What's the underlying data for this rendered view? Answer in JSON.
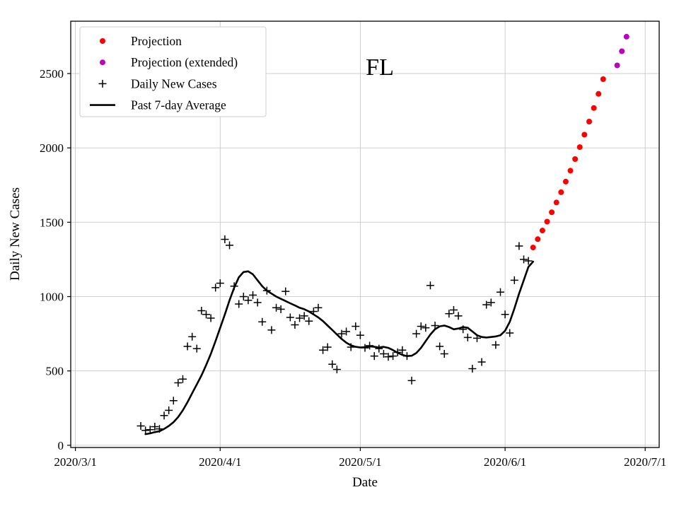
{
  "chart_data": {
    "type": "line",
    "title": "FL",
    "xlabel": "Date",
    "ylabel": "Daily New Cases",
    "grid": true,
    "legend_position": "upper left",
    "x_axis": {
      "unit": "days since 2020-03-01",
      "tick_labels": [
        "2020/3/1",
        "2020/4/1",
        "2020/5/1",
        "2020/6/1",
        "2020/7/1"
      ],
      "tick_days": [
        0,
        31,
        61,
        92,
        122
      ],
      "range_days": [
        -1,
        125
      ]
    },
    "y_axis": {
      "ticks": [
        0,
        500,
        1000,
        1500,
        2000,
        2500
      ],
      "range": [
        -15,
        2852
      ]
    },
    "series": [
      {
        "id": "daily-new-cases",
        "name": "Daily New Cases",
        "type": "scatter",
        "marker": "plus",
        "color": "#000000",
        "points": [
          [
            14,
            130
          ],
          [
            15,
            100
          ],
          [
            16,
            105
          ],
          [
            17,
            125
          ],
          [
            18,
            110
          ],
          [
            19,
            200
          ],
          [
            20,
            235
          ],
          [
            21,
            300
          ],
          [
            22,
            420
          ],
          [
            23,
            445
          ],
          [
            24,
            665
          ],
          [
            25,
            730
          ],
          [
            26,
            650
          ],
          [
            27,
            905
          ],
          [
            28,
            880
          ],
          [
            29,
            855
          ],
          [
            30,
            1060
          ],
          [
            31,
            1090
          ],
          [
            32,
            1385
          ],
          [
            33,
            1345
          ],
          [
            34,
            1070
          ],
          [
            35,
            950
          ],
          [
            36,
            1000
          ],
          [
            37,
            975
          ],
          [
            38,
            1010
          ],
          [
            39,
            960
          ],
          [
            40,
            830
          ],
          [
            41,
            1040
          ],
          [
            42,
            775
          ],
          [
            43,
            925
          ],
          [
            44,
            915
          ],
          [
            45,
            1035
          ],
          [
            46,
            860
          ],
          [
            47,
            810
          ],
          [
            48,
            855
          ],
          [
            49,
            870
          ],
          [
            50,
            835
          ],
          [
            51,
            900
          ],
          [
            52,
            925
          ],
          [
            53,
            640
          ],
          [
            54,
            660
          ],
          [
            55,
            545
          ],
          [
            56,
            510
          ],
          [
            57,
            750
          ],
          [
            58,
            765
          ],
          [
            59,
            660
          ],
          [
            60,
            800
          ],
          [
            61,
            740
          ],
          [
            62,
            655
          ],
          [
            63,
            670
          ],
          [
            64,
            600
          ],
          [
            65,
            650
          ],
          [
            66,
            615
          ],
          [
            67,
            595
          ],
          [
            68,
            600
          ],
          [
            69,
            625
          ],
          [
            70,
            640
          ],
          [
            71,
            600
          ],
          [
            72,
            435
          ],
          [
            73,
            750
          ],
          [
            74,
            800
          ],
          [
            75,
            790
          ],
          [
            76,
            1075
          ],
          [
            77,
            805
          ],
          [
            78,
            665
          ],
          [
            79,
            615
          ],
          [
            80,
            885
          ],
          [
            81,
            910
          ],
          [
            82,
            870
          ],
          [
            83,
            780
          ],
          [
            84,
            725
          ],
          [
            85,
            515
          ],
          [
            86,
            720
          ],
          [
            87,
            560
          ],
          [
            88,
            945
          ],
          [
            89,
            960
          ],
          [
            90,
            675
          ],
          [
            91,
            1030
          ],
          [
            92,
            880
          ],
          [
            93,
            755
          ],
          [
            94,
            1110
          ],
          [
            95,
            1340
          ],
          [
            96,
            1250
          ],
          [
            97,
            1240
          ]
        ]
      },
      {
        "id": "past-7day-average",
        "name": "Past 7-day Average",
        "type": "line",
        "marker": "line",
        "color": "#000000",
        "points": [
          [
            15,
            75
          ],
          [
            16,
            80
          ],
          [
            17,
            88
          ],
          [
            18,
            95
          ],
          [
            19,
            110
          ],
          [
            20,
            130
          ],
          [
            21,
            155
          ],
          [
            22,
            190
          ],
          [
            23,
            235
          ],
          [
            24,
            290
          ],
          [
            25,
            350
          ],
          [
            26,
            410
          ],
          [
            27,
            470
          ],
          [
            28,
            540
          ],
          [
            29,
            615
          ],
          [
            30,
            700
          ],
          [
            31,
            790
          ],
          [
            32,
            880
          ],
          [
            33,
            975
          ],
          [
            34,
            1060
          ],
          [
            35,
            1130
          ],
          [
            36,
            1165
          ],
          [
            37,
            1170
          ],
          [
            38,
            1150
          ],
          [
            39,
            1110
          ],
          [
            40,
            1070
          ],
          [
            41,
            1040
          ],
          [
            42,
            1020
          ],
          [
            43,
            1000
          ],
          [
            44,
            985
          ],
          [
            45,
            970
          ],
          [
            46,
            955
          ],
          [
            47,
            940
          ],
          [
            48,
            925
          ],
          [
            49,
            915
          ],
          [
            50,
            900
          ],
          [
            51,
            880
          ],
          [
            52,
            860
          ],
          [
            53,
            835
          ],
          [
            54,
            805
          ],
          [
            55,
            775
          ],
          [
            56,
            745
          ],
          [
            57,
            715
          ],
          [
            58,
            690
          ],
          [
            59,
            672
          ],
          [
            60,
            662
          ],
          [
            61,
            658
          ],
          [
            62,
            660
          ],
          [
            63,
            665
          ],
          [
            64,
            662
          ],
          [
            65,
            658
          ],
          [
            66,
            662
          ],
          [
            67,
            655
          ],
          [
            68,
            640
          ],
          [
            69,
            622
          ],
          [
            70,
            608
          ],
          [
            71,
            600
          ],
          [
            72,
            602
          ],
          [
            73,
            620
          ],
          [
            74,
            655
          ],
          [
            75,
            700
          ],
          [
            76,
            745
          ],
          [
            77,
            780
          ],
          [
            78,
            800
          ],
          [
            79,
            805
          ],
          [
            80,
            795
          ],
          [
            81,
            780
          ],
          [
            82,
            785
          ],
          [
            83,
            795
          ],
          [
            84,
            790
          ],
          [
            85,
            765
          ],
          [
            86,
            740
          ],
          [
            87,
            728
          ],
          [
            88,
            725
          ],
          [
            89,
            728
          ],
          [
            90,
            732
          ],
          [
            91,
            740
          ],
          [
            92,
            770
          ],
          [
            93,
            830
          ],
          [
            94,
            920
          ],
          [
            95,
            1020
          ],
          [
            96,
            1110
          ],
          [
            97,
            1200
          ],
          [
            98,
            1235
          ]
        ]
      },
      {
        "id": "projection",
        "name": "Projection",
        "type": "scatter",
        "marker": "dot",
        "color": "#ff0000",
        "points": [
          [
            98,
            1330
          ],
          [
            99,
            1386
          ],
          [
            100,
            1444
          ],
          [
            101,
            1504
          ],
          [
            102,
            1567
          ],
          [
            103,
            1633
          ],
          [
            104,
            1702
          ],
          [
            105,
            1773
          ],
          [
            106,
            1847
          ],
          [
            107,
            1925
          ],
          [
            108,
            2005
          ],
          [
            109,
            2089
          ],
          [
            110,
            2177
          ],
          [
            111,
            2268
          ],
          [
            112,
            2363
          ],
          [
            113,
            2462
          ]
        ]
      },
      {
        "id": "projection-extended",
        "name": "Projection (extended)",
        "type": "scatter",
        "marker": "dot",
        "color": "#bf00bf",
        "points": [
          [
            116,
            2555
          ],
          [
            117,
            2650
          ],
          [
            118,
            2748
          ]
        ]
      }
    ]
  },
  "legend": {
    "items": [
      {
        "label": "Projection",
        "marker": "dot",
        "color": "#ff0000"
      },
      {
        "label": "Projection (extended)",
        "marker": "dot",
        "color": "#bf00bf"
      },
      {
        "label": "Daily New Cases",
        "marker": "plus",
        "color": "#000000"
      },
      {
        "label": "Past 7-day Average",
        "marker": "line",
        "color": "#000000"
      }
    ]
  }
}
